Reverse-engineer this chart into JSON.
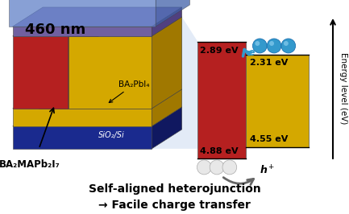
{
  "bottom_line1": "Self-aligned heterojunction",
  "bottom_line2": "→ Facile charge transfer",
  "ylabel": "Energy level (eV)",
  "labels_460nm": "460 nm",
  "label_mat1": "BA₂MAPb₂I₇",
  "label_mat2": "BA₂PbI₄",
  "label_sub": "SiO₂/Si",
  "bg_color": "#ffffff",
  "red_color": "#b52020",
  "yellow_color": "#d4a800",
  "yellow_bright": "#e8c020",
  "blue_layer_color": "#6080c8",
  "blue_layer_top": "#8090d8",
  "blue_layer_side": "#4060a8",
  "purple_layer_color": "#7060a0",
  "purple_layer_top": "#9080c0",
  "purple_layer_side": "#504080",
  "dark_blue_color": "#1a2a8e",
  "dark_blue_top": "#2233bb",
  "dark_blue_side": "#101860",
  "light_beam_color": "#c8d8f0",
  "electron_color": "#3399cc",
  "hole_color": "#cccccc",
  "ev_label_color": "#111111"
}
